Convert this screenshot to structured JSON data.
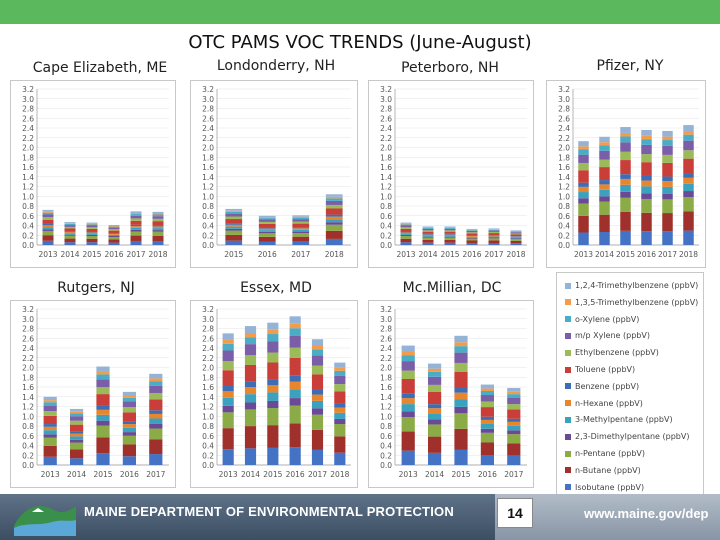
{
  "title": "OTC PAMS VOC TRENDS (June-August)",
  "legend_title_order_note": "legend listed top to bottom",
  "compounds": [
    {
      "name": "Isobutane (ppbV)",
      "color": "#4472c4"
    },
    {
      "name": "n-Butane (ppbV)",
      "color": "#a0302b"
    },
    {
      "name": "n-Pentane (ppbV)",
      "color": "#8aab46"
    },
    {
      "name": "2,3-Dimethylpentane (ppbV)",
      "color": "#6a4a96"
    },
    {
      "name": "3-Methylpentane (ppbV)",
      "color": "#3aa2be"
    },
    {
      "name": "n-Hexane (ppbV)",
      "color": "#e8862e"
    },
    {
      "name": "Benzene (ppbV)",
      "color": "#3d6eb5"
    },
    {
      "name": "Toluene (ppbV)",
      "color": "#c93e39"
    },
    {
      "name": "Ethylbenzene (ppbV)",
      "color": "#9bbb59"
    },
    {
      "name": "m/p Xylene (ppbV)",
      "color": "#7b5ea8"
    },
    {
      "name": "o-Xylene (ppbV)",
      "color": "#4bacc6"
    },
    {
      "name": "1,3,5-Trimethylbenzene (ppbV)",
      "color": "#f39c4a"
    },
    {
      "name": "1,2,4-Trimethylbenzene (ppbV)",
      "color": "#95b3d7"
    }
  ],
  "legend_order": [
    12,
    11,
    10,
    9,
    8,
    7,
    6,
    5,
    4,
    3,
    2,
    1,
    0
  ],
  "chart_data": [
    {
      "type": "bar",
      "stacked": true,
      "title": "Cape Elizabeth, ME",
      "categories": [
        "2013",
        "2014",
        "2015",
        "2016",
        "2017",
        "2018"
      ],
      "totals": [
        0.72,
        0.47,
        0.46,
        0.41,
        0.69,
        0.68
      ],
      "ylim": [
        0,
        3.2
      ],
      "yticks": [
        "0.0",
        "0.2",
        "0.4",
        "0.6",
        "0.8",
        "1.0",
        "1.2",
        "1.4",
        "1.6",
        "1.8",
        "2.0",
        "2.2",
        "2.4",
        "2.6",
        "2.8",
        "3.0",
        "3.2"
      ]
    },
    {
      "type": "bar",
      "stacked": true,
      "title": "Londonderry, NH",
      "categories": [
        "2015",
        "2016",
        "2017",
        "2018"
      ],
      "totals": [
        0.74,
        0.6,
        0.61,
        1.04
      ],
      "ylim": [
        0,
        3.2
      ],
      "yticks": [
        "0.0",
        "0.2",
        "0.4",
        "0.6",
        "0.8",
        "1.0",
        "1.2",
        "1.4",
        "1.6",
        "1.8",
        "2.0",
        "2.2",
        "2.4",
        "2.6",
        "2.8",
        "3.0",
        "3.2"
      ]
    },
    {
      "type": "bar",
      "stacked": true,
      "title": "Peterboro, NH",
      "categories": [
        "2013",
        "2014",
        "2015",
        "2016",
        "2017",
        "2018"
      ],
      "totals": [
        0.46,
        0.38,
        0.38,
        0.33,
        0.34,
        0.3
      ],
      "ylim": [
        0,
        3.2
      ],
      "yticks": [
        "0.0",
        "0.2",
        "0.4",
        "0.6",
        "0.8",
        "1.0",
        "1.2",
        "1.4",
        "1.6",
        "1.8",
        "2.0",
        "2.2",
        "2.4",
        "2.6",
        "2.8",
        "3.0",
        "3.2"
      ]
    },
    {
      "type": "bar",
      "stacked": true,
      "title": "Pfizer, NY",
      "categories": [
        "2013",
        "2014",
        "2015",
        "2016",
        "2017",
        "2018"
      ],
      "totals": [
        2.13,
        2.22,
        2.42,
        2.36,
        2.34,
        2.46
      ],
      "ylim": [
        0,
        3.2
      ],
      "yticks": [
        "0.0",
        "0.2",
        "0.4",
        "0.6",
        "0.8",
        "1.0",
        "1.2",
        "1.4",
        "1.6",
        "1.8",
        "2.0",
        "2.2",
        "2.4",
        "2.6",
        "2.8",
        "3.0",
        "3.2"
      ]
    },
    {
      "type": "bar",
      "stacked": true,
      "title": "Rutgers, NJ",
      "categories": [
        "2013",
        "2014",
        "2015",
        "2016",
        "2017"
      ],
      "totals": [
        1.4,
        1.15,
        2.02,
        1.5,
        1.87
      ],
      "ylim": [
        0,
        3.2
      ],
      "yticks": [
        "0.0",
        "0.2",
        "0.4",
        "0.6",
        "0.8",
        "1.0",
        "1.2",
        "1.4",
        "1.6",
        "1.8",
        "2.0",
        "2.2",
        "2.4",
        "2.6",
        "2.8",
        "3.0",
        "3.2"
      ]
    },
    {
      "type": "bar",
      "stacked": true,
      "title": "Essex, MD",
      "categories": [
        "2013",
        "2014",
        "2015",
        "2016",
        "2017",
        "2018"
      ],
      "totals": [
        2.7,
        2.85,
        2.92,
        3.05,
        2.58,
        2.1
      ],
      "ylim": [
        0,
        3.2
      ],
      "yticks": [
        "0.0",
        "0.2",
        "0.4",
        "0.6",
        "0.8",
        "1.0",
        "1.2",
        "1.4",
        "1.6",
        "1.8",
        "2.0",
        "2.2",
        "2.4",
        "2.6",
        "2.8",
        "3.0",
        "3.2"
      ]
    },
    {
      "type": "bar",
      "stacked": true,
      "title": "Mc.Millian, DC",
      "categories": [
        "2013",
        "2014",
        "2015",
        "2016",
        "2017"
      ],
      "totals": [
        2.45,
        2.08,
        2.65,
        1.65,
        1.58
      ],
      "ylim": [
        0,
        3.2
      ],
      "yticks": [
        "0.0",
        "0.2",
        "0.4",
        "0.6",
        "0.8",
        "1.0",
        "1.2",
        "1.4",
        "1.6",
        "1.8",
        "2.0",
        "2.2",
        "2.4",
        "2.6",
        "2.8",
        "3.0",
        "3.2"
      ]
    }
  ],
  "component_fractions": [
    0.12,
    0.16,
    0.12,
    0.05,
    0.06,
    0.05,
    0.04,
    0.12,
    0.07,
    0.08,
    0.05,
    0.03,
    0.05
  ],
  "footer": {
    "department": "MAINE DEPARTMENT OF ENVIRONMENTAL PROTECTION",
    "page_number": "14",
    "url": "www.maine.gov/dep"
  }
}
